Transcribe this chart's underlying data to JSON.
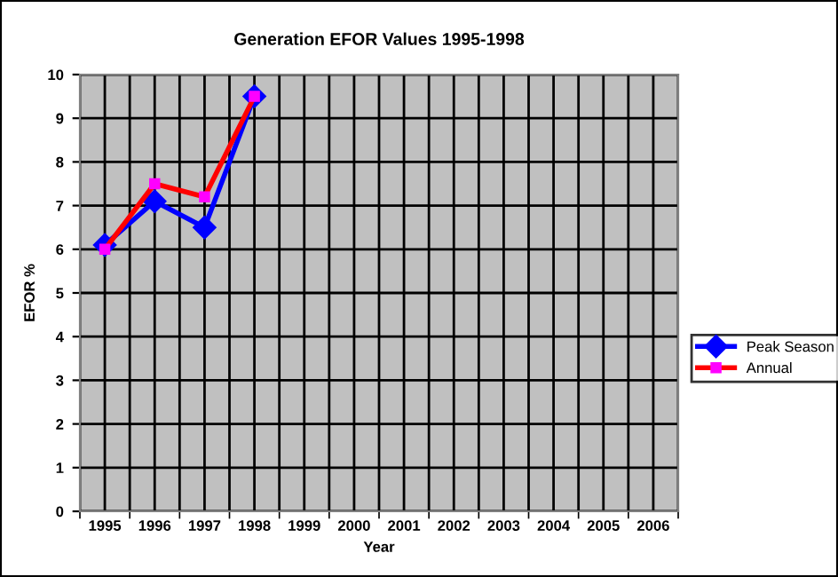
{
  "chart_data": {
    "type": "line",
    "title": "Generation EFOR Values 1995-1998",
    "xlabel": "Year",
    "ylabel": "EFOR %",
    "categories": [
      "1995",
      "1996",
      "1997",
      "1998",
      "1999",
      "2000",
      "2001",
      "2002",
      "2003",
      "2004",
      "2005",
      "2006"
    ],
    "series": [
      {
        "name": "Peak Season",
        "color": "#0000ff",
        "marker": "diamond",
        "values": [
          6.1,
          7.1,
          6.5,
          9.5,
          null,
          null,
          null,
          null,
          null,
          null,
          null,
          null
        ]
      },
      {
        "name": "Annual",
        "color": "#ff0000",
        "marker": "square",
        "values": [
          6.0,
          7.5,
          7.2,
          9.5,
          null,
          null,
          null,
          null,
          null,
          null,
          null,
          null
        ]
      }
    ],
    "ylim": [
      0,
      10
    ],
    "yticks": [
      0,
      1,
      2,
      3,
      4,
      5,
      6,
      7,
      8,
      9,
      10
    ],
    "grid": true,
    "legend": "right",
    "line_style": "solid"
  }
}
